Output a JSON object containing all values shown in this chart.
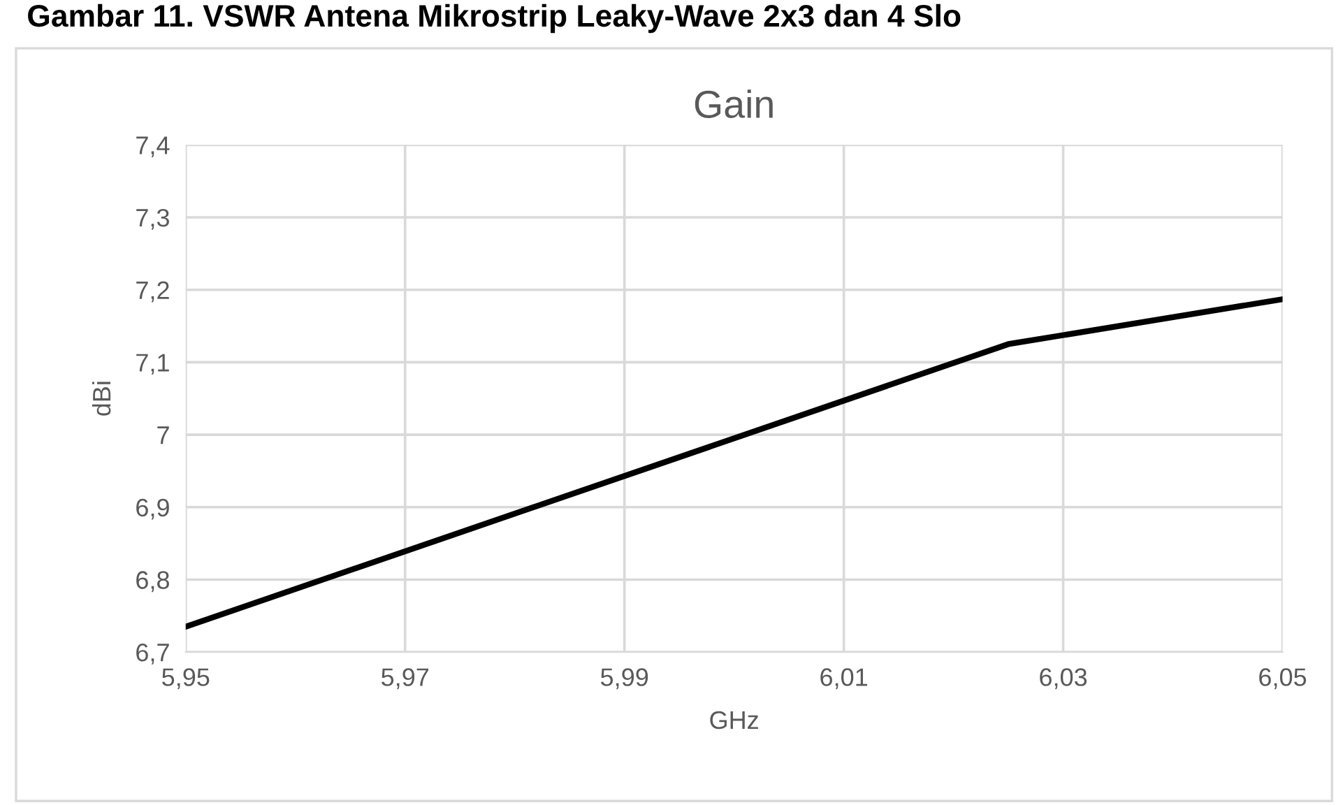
{
  "chart_data": {
    "type": "line",
    "title": "Gain",
    "xlabel": "GHz",
    "ylabel": "dBi",
    "annotations": [
      "Gambar 11. VSWR Antena Mikrostrip Leaky-Wave 2x3 dan 4 Slo"
    ],
    "x": [
      5.95,
      6.025,
      6.05
    ],
    "series": [
      {
        "color": "#000000",
        "values": [
          6.735,
          7.125,
          7.187
        ]
      }
    ],
    "xlim": [
      5.95,
      6.05
    ],
    "xticks": [
      {
        "value": 5.95,
        "label": "5,95"
      },
      {
        "value": 5.97,
        "label": "5,97"
      },
      {
        "value": 5.99,
        "label": "5,99"
      },
      {
        "value": 6.01,
        "label": "6,01"
      },
      {
        "value": 6.03,
        "label": "6,03"
      },
      {
        "value": 6.05,
        "label": "6,05"
      }
    ],
    "ylim": [
      6.7,
      7.4
    ],
    "yticks": [
      {
        "value": 6.7,
        "label": "6,7"
      },
      {
        "value": 6.8,
        "label": "6,8"
      },
      {
        "value": 6.9,
        "label": "6,9"
      },
      7,
      {
        "value": 7.1,
        "label": "7,1"
      },
      {
        "value": 7.2,
        "label": "7,2"
      },
      {
        "value": 7.3,
        "label": "7,3"
      },
      {
        "value": 7.4,
        "label": "7,4"
      }
    ],
    "grid": true,
    "legend": false,
    "marker": "none",
    "line_style": "solid"
  }
}
